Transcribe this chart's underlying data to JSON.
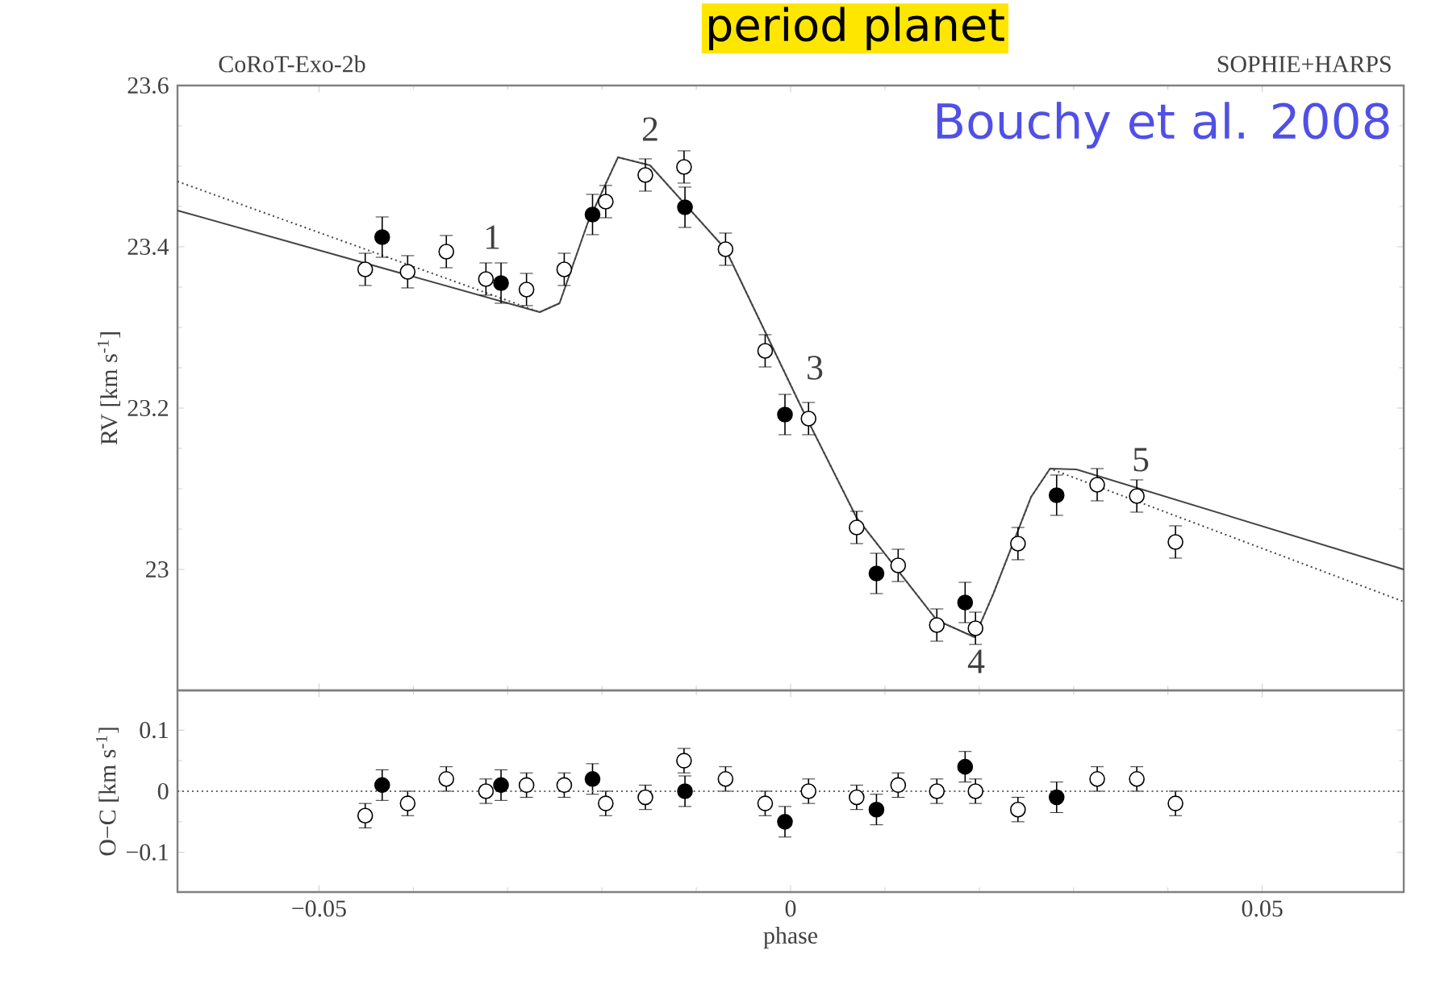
{
  "chart_data": [
    {
      "type": "scatter",
      "title": "period planet",
      "ylabel": "RV [km s$^{-1}$]",
      "xlim": [
        -0.065,
        0.065
      ],
      "xticks": [
        -0.05,
        0,
        0.05
      ],
      "ylim": [
        22.85,
        23.6
      ],
      "yticks": [
        23,
        23.2,
        23.4,
        23.6
      ],
      "tick_labels": "y",
      "grid": false,
      "annotations": [
        "CoRoT-Exo-2b",
        "SOPHIE+HARPS",
        "Bouchy et al. 2008",
        "1",
        "2",
        "3",
        "4",
        "5"
      ],
      "series": [
        {
          "type": "line",
          "color": "#444444",
          "line_style": "solid",
          "marker": "none",
          "x": [
            -0.065,
            -0.0266,
            -0.0245,
            -0.0215,
            -0.0183,
            -0.0149,
            -0.0069,
            0.0013,
            0.007,
            0.0155,
            0.0195,
            0.0215,
            0.0255,
            0.0275,
            0.0303,
            0.065
          ],
          "values": [
            23.445,
            23.319,
            23.33,
            23.43,
            23.511,
            23.501,
            23.397,
            23.197,
            23.064,
            22.937,
            22.916,
            22.97,
            23.09,
            23.125,
            23.124,
            23.0
          ]
        },
        {
          "type": "line",
          "color": "#444444",
          "line_style": "dotted",
          "marker": "none",
          "x": [
            -0.065,
            -0.0266,
            -0.0245,
            -0.0215,
            -0.0183,
            -0.0149,
            -0.0069,
            0.0013,
            0.007,
            0.0155,
            0.0195,
            0.0215,
            0.0255,
            0.0275,
            0.065
          ],
          "values": [
            23.481,
            23.319,
            23.33,
            23.43,
            23.511,
            23.501,
            23.397,
            23.197,
            23.064,
            22.937,
            22.916,
            22.97,
            23.09,
            23.125,
            22.96
          ]
        },
        {
          "color": "#ffffff",
          "marker": "circle",
          "x": [
            -0.0451,
            -0.0406,
            -0.0365,
            -0.0323,
            -0.028,
            -0.024,
            -0.0196,
            -0.0154,
            -0.0113,
            -0.0069,
            -0.0027,
            0.0019,
            0.007,
            0.0114,
            0.0155,
            0.0196,
            0.0241,
            0.0325,
            0.0367,
            0.0408
          ],
          "values": [
            23.372,
            23.369,
            23.394,
            23.36,
            23.347,
            23.372,
            23.456,
            23.489,
            23.499,
            23.397,
            23.271,
            23.187,
            23.052,
            23.005,
            22.931,
            22.927,
            23.032,
            23.105,
            23.091,
            23.034
          ],
          "errors": [
            0.02,
            0.02,
            0.02,
            0.02,
            0.02,
            0.02,
            0.02,
            0.02,
            0.02,
            0.02,
            0.02,
            0.02,
            0.02,
            0.02,
            0.02,
            0.02,
            0.02,
            0.02,
            0.02,
            0.02
          ]
        },
        {
          "color": "#000000",
          "marker": "circle",
          "x": [
            -0.0433,
            -0.0307,
            -0.021,
            -0.0112,
            -0.0006,
            0.0091,
            0.0185,
            0.0282
          ],
          "values": [
            23.412,
            23.355,
            23.44,
            23.449,
            23.192,
            22.995,
            22.959,
            23.092
          ],
          "errors": [
            0.025,
            0.025,
            0.025,
            0.025,
            0.025,
            0.025,
            0.025,
            0.025
          ]
        }
      ]
    },
    {
      "type": "scatter",
      "xlabel": "phase",
      "ylabel": "O−C [km s$^{-1}$]",
      "xlim": [
        -0.065,
        0.065
      ],
      "xticks": [
        {
          "value": -0.05,
          "label": "−0.05"
        },
        0,
        0.05
      ],
      "ylim": [
        -0.165,
        0.165
      ],
      "yticks": [
        {
          "value": -0.1,
          "label": "−0.1"
        },
        0,
        0.1
      ],
      "grid": false,
      "ref_lines": [
        {
          "axis": "y",
          "value": 0,
          "line_style": "dotted",
          "color": "#666666"
        }
      ],
      "series": [
        {
          "color": "#ffffff",
          "marker": "circle",
          "x": [
            -0.0451,
            -0.0406,
            -0.0365,
            -0.0323,
            -0.028,
            -0.024,
            -0.0196,
            -0.0154,
            -0.0113,
            -0.0069,
            -0.0027,
            0.0019,
            0.007,
            0.0114,
            0.0155,
            0.0196,
            0.0241,
            0.0325,
            0.0367,
            0.0408
          ],
          "values": [
            -0.04,
            -0.02,
            0.02,
            0.0,
            0.01,
            0.01,
            -0.02,
            -0.01,
            0.05,
            0.02,
            -0.02,
            0.0,
            -0.01,
            0.01,
            0.0,
            0.0,
            -0.03,
            0.02,
            0.02,
            -0.02
          ],
          "errors": [
            0.02,
            0.02,
            0.02,
            0.02,
            0.02,
            0.02,
            0.02,
            0.02,
            0.02,
            0.02,
            0.02,
            0.02,
            0.02,
            0.02,
            0.02,
            0.02,
            0.02,
            0.02,
            0.02,
            0.02
          ]
        },
        {
          "color": "#000000",
          "marker": "circle",
          "x": [
            -0.0433,
            -0.0307,
            -0.021,
            -0.0112,
            -0.0006,
            0.0091,
            0.0185,
            0.0282
          ],
          "values": [
            0.01,
            0.01,
            0.02,
            0.0,
            -0.05,
            -0.03,
            0.04,
            -0.01
          ],
          "errors": [
            0.025,
            0.025,
            0.025,
            0.025,
            0.025,
            0.025,
            0.025,
            0.025
          ]
        }
      ]
    }
  ]
}
